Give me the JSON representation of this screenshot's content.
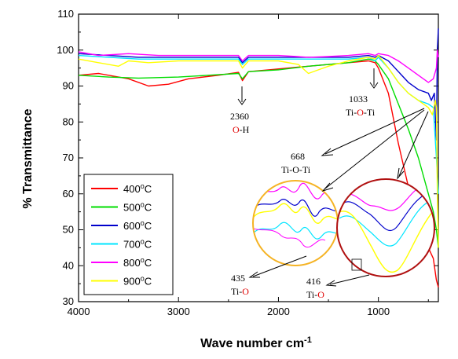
{
  "chart_data": {
    "type": "line",
    "xlabel": "Wave number cm",
    "xlabel_sup": "-1",
    "ylabel": "% Transmittance",
    "xlim": [
      4000,
      400
    ],
    "ylim": [
      30,
      110
    ],
    "x_ticks": [
      4000,
      3000,
      2000,
      1000
    ],
    "y_ticks": [
      30,
      40,
      50,
      60,
      70,
      80,
      90,
      100,
      110
    ],
    "grid": false,
    "legend_position": "bottom-left",
    "series": [
      {
        "name": "400°C",
        "label_num": "400",
        "label_unit": "C",
        "color": "#ff0000",
        "x": [
          4000,
          3800,
          3500,
          3300,
          3100,
          2900,
          2600,
          2400,
          2360,
          2300,
          2100,
          1900,
          1700,
          1500,
          1300,
          1100,
          1033,
          1000,
          900,
          800,
          700,
          600,
          500,
          450,
          420,
          400
        ],
        "y": [
          93,
          93.5,
          92,
          90,
          90.5,
          92,
          93,
          93.8,
          91.5,
          94,
          94.5,
          95,
          95.5,
          96,
          96.5,
          97,
          96.5,
          95,
          88,
          74,
          62,
          52,
          45,
          42,
          36,
          34
        ]
      },
      {
        "name": "500°C",
        "label_num": "500",
        "label_unit": "C",
        "color": "#00dd00",
        "x": [
          4000,
          3700,
          3400,
          3000,
          2700,
          2400,
          2360,
          2300,
          2000,
          1700,
          1500,
          1300,
          1100,
          1033,
          1000,
          900,
          800,
          700,
          600,
          500,
          450,
          420,
          400
        ],
        "y": [
          93,
          92.5,
          92.2,
          92.5,
          93,
          93.5,
          92,
          94,
          94.5,
          95.5,
          96,
          96.5,
          97.5,
          97,
          96,
          92,
          85,
          78,
          70,
          60,
          55,
          50,
          45
        ]
      },
      {
        "name": "600°C",
        "label_num": "600",
        "label_unit": "C",
        "color": "#0000cc",
        "x": [
          4000,
          3700,
          3400,
          3000,
          2700,
          2400,
          2360,
          2300,
          2000,
          1700,
          1500,
          1300,
          1100,
          1033,
          1000,
          900,
          800,
          700,
          600,
          500,
          470,
          440,
          420,
          410,
          400
        ],
        "y": [
          99,
          98.5,
          98,
          98,
          98,
          98,
          96.5,
          98,
          98,
          98,
          98,
          98,
          98.5,
          98,
          98.5,
          97,
          94,
          91,
          89,
          88,
          86,
          88,
          75,
          100,
          106
        ]
      },
      {
        "name": "700°C",
        "label_num": "700",
        "label_unit": "C",
        "color": "#00e5ff",
        "x": [
          4000,
          3700,
          3400,
          3000,
          2700,
          2400,
          2360,
          2300,
          2000,
          1700,
          1500,
          1300,
          1100,
          1033,
          1000,
          900,
          800,
          700,
          600,
          500,
          450,
          420,
          400
        ],
        "y": [
          98.5,
          98,
          97.5,
          97.5,
          97.5,
          97.5,
          96,
          97.5,
          97.5,
          97.5,
          97.5,
          97.5,
          98,
          97,
          98,
          95,
          91,
          88,
          86,
          85,
          84,
          70,
          60
        ]
      },
      {
        "name": "800°C",
        "label_num": "800",
        "label_unit": "C",
        "color": "#ff00ff",
        "x": [
          4000,
          3800,
          3500,
          3200,
          3000,
          2700,
          2400,
          2360,
          2300,
          2000,
          1700,
          1500,
          1300,
          1100,
          1033,
          1000,
          900,
          800,
          700,
          600,
          500,
          450,
          420,
          410,
          400
        ],
        "y": [
          99.5,
          98.5,
          99,
          98.5,
          98.5,
          98.5,
          98.5,
          97,
          98.5,
          98.5,
          98,
          98.2,
          98.5,
          99,
          98.5,
          99,
          98.5,
          97,
          95,
          93,
          91,
          92,
          95,
          100,
          98
        ]
      },
      {
        "name": "900°C",
        "label_num": "900",
        "label_unit": "C",
        "color": "#ffff00",
        "x": [
          4000,
          3800,
          3600,
          3500,
          3300,
          3000,
          2700,
          2400,
          2360,
          2300,
          2000,
          1800,
          1700,
          1600,
          1500,
          1300,
          1100,
          1033,
          1000,
          900,
          800,
          700,
          600,
          500,
          460,
          430,
          420,
          410,
          400
        ],
        "y": [
          97.5,
          96.5,
          95.5,
          97,
          96.5,
          97,
          97,
          97,
          95,
          97,
          97,
          96,
          93.5,
          94.5,
          95.5,
          97,
          98,
          97.5,
          98.5,
          95,
          91,
          88,
          86,
          84,
          82,
          86,
          84,
          60,
          45
        ]
      }
    ],
    "annotations": [
      {
        "value": "2360",
        "group_black": "",
        "group_red": "O",
        "group_tail": "-H"
      },
      {
        "value": "1033",
        "group_black": "Ti-",
        "group_red": "O",
        "group_tail": "-Ti"
      },
      {
        "value": "668",
        "group_black": "Ti-O-Ti",
        "group_red": "",
        "group_tail": ""
      },
      {
        "value": "435",
        "group_black": "Ti-",
        "group_red": "O",
        "group_tail": ""
      },
      {
        "value": "416",
        "group_black": "Ti-",
        "group_red": "O",
        "group_tail": ""
      }
    ],
    "colors": {
      "inset_left_border": "#f5b324",
      "inset_right_border": "#b01010",
      "axis": "#000000"
    }
  }
}
